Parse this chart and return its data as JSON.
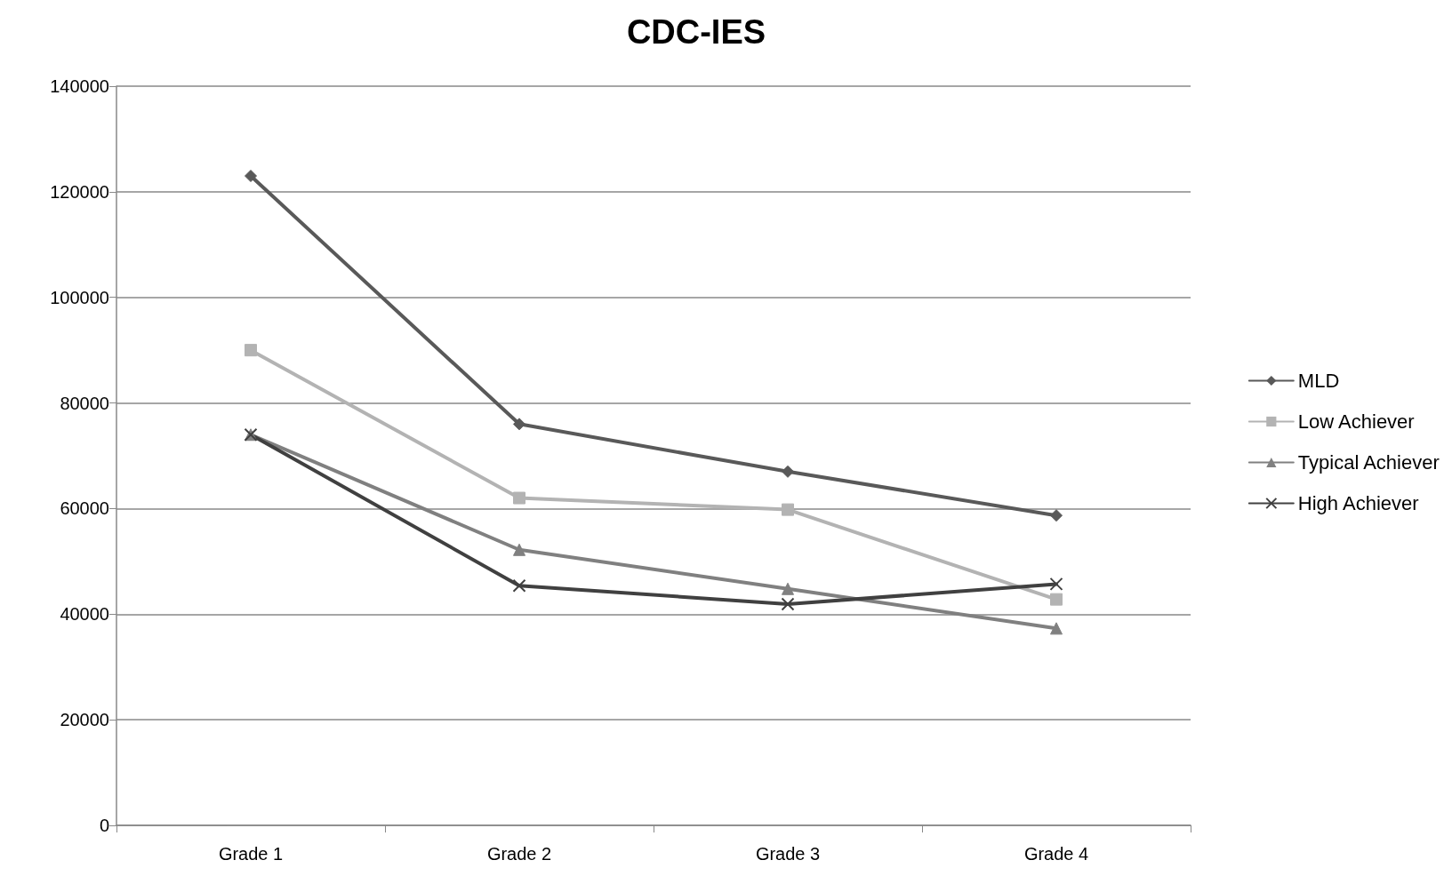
{
  "chart_data": {
    "type": "line",
    "title": "CDC-IES",
    "categories": [
      "Grade 1",
      "Grade 2",
      "Grade 3",
      "Grade 4"
    ],
    "series": [
      {
        "name": "MLD",
        "color": "#595959",
        "marker": "diamond",
        "values": [
          123000,
          76000,
          67000,
          58700
        ]
      },
      {
        "name": "Low Achiever",
        "color": "#b3b3b3",
        "marker": "square",
        "values": [
          90000,
          62000,
          59800,
          42800
        ]
      },
      {
        "name": "Typical Achiever",
        "color": "#808080",
        "marker": "triangle",
        "values": [
          74000,
          52200,
          44800,
          37300
        ]
      },
      {
        "name": "High Achiever",
        "color": "#404040",
        "marker": "cross",
        "values": [
          74000,
          45400,
          41900,
          45700
        ]
      }
    ],
    "ylim": [
      0,
      140000
    ],
    "yticks": [
      0,
      20000,
      40000,
      60000,
      80000,
      100000,
      120000,
      140000
    ],
    "grid": "y",
    "legend": "right",
    "line_style": "solid"
  }
}
